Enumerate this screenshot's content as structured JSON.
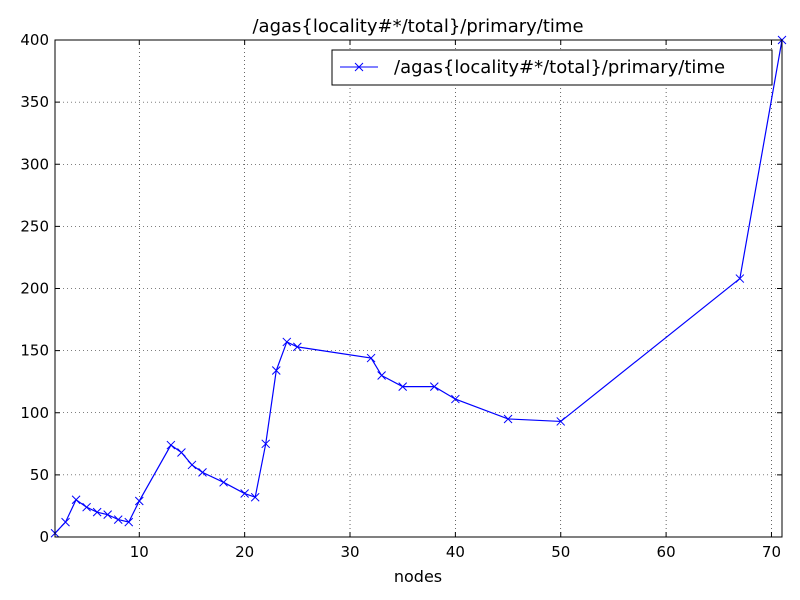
{
  "chart_data": {
    "type": "line",
    "title": "/agas{locality#*/total}/primary/time",
    "xlabel": "nodes",
    "ylabel": "",
    "xlim": [
      2,
      71
    ],
    "ylim": [
      0,
      400
    ],
    "xticks": [
      10,
      20,
      30,
      40,
      50,
      60,
      70
    ],
    "yticks": [
      0,
      50,
      100,
      150,
      200,
      250,
      300,
      350,
      400
    ],
    "grid": true,
    "legend_position": "top-right",
    "series": [
      {
        "name": "/agas{locality#*/total}/primary/time",
        "color": "#0000ff",
        "marker": "x",
        "points": [
          [
            2,
            3
          ],
          [
            3,
            12
          ],
          [
            4,
            30
          ],
          [
            5,
            24
          ],
          [
            6,
            20
          ],
          [
            7,
            18
          ],
          [
            8,
            14
          ],
          [
            9,
            12
          ],
          [
            10,
            29
          ],
          [
            13,
            74
          ],
          [
            14,
            68
          ],
          [
            15,
            58
          ],
          [
            16,
            52
          ],
          [
            18,
            44
          ],
          [
            20,
            35
          ],
          [
            21,
            32
          ],
          [
            22,
            75
          ],
          [
            23,
            134
          ],
          [
            24,
            157
          ],
          [
            25,
            153
          ],
          [
            32,
            144
          ],
          [
            33,
            130
          ],
          [
            35,
            121
          ],
          [
            38,
            121
          ],
          [
            40,
            111
          ],
          [
            45,
            95
          ],
          [
            50,
            93
          ],
          [
            67,
            208
          ],
          [
            71,
            400
          ]
        ]
      }
    ]
  }
}
